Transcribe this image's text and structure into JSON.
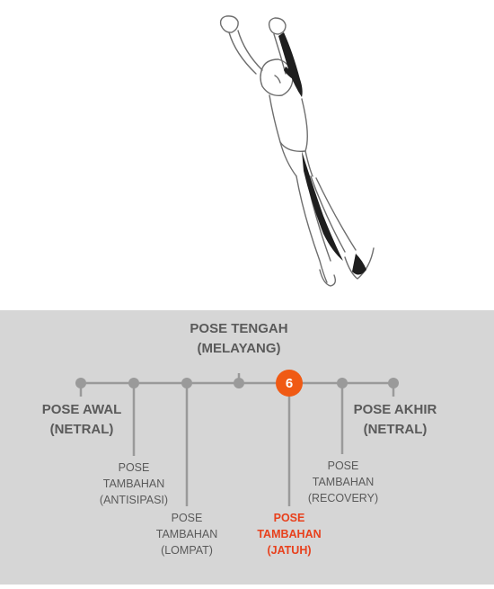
{
  "timeline": {
    "current_marker": "6",
    "labels": {
      "pose_tengah": {
        "line1": "POSE TENGAH",
        "line2": "(MELAYANG)"
      },
      "pose_awal": {
        "line1": "POSE AWAL",
        "line2": "(NETRAL)"
      },
      "pose_akhir": {
        "line1": "POSE AKHIR",
        "line2": "(NETRAL)"
      },
      "tambahan_antisipasi": {
        "line1": "POSE",
        "line2": "TAMBAHAN",
        "line3": "(ANTISIPASI)"
      },
      "tambahan_lompat": {
        "line1": "POSE",
        "line2": "TAMBAHAN",
        "line3": "(LOMPAT)"
      },
      "tambahan_jatuh": {
        "line1": "POSE",
        "line2": "TAMBAHAN",
        "line3": "(JATUH)"
      },
      "tambahan_recovery": {
        "line1": "POSE",
        "line2": "TAMBAHAN",
        "line3": "(RECOVERY)"
      }
    }
  },
  "colors": {
    "panel_bg": "#d6d6d6",
    "line_gray": "#9a9a9a",
    "text_gray": "#5a5a5a",
    "highlight_orange": "#f05a14",
    "highlight_text": "#e8401c"
  }
}
